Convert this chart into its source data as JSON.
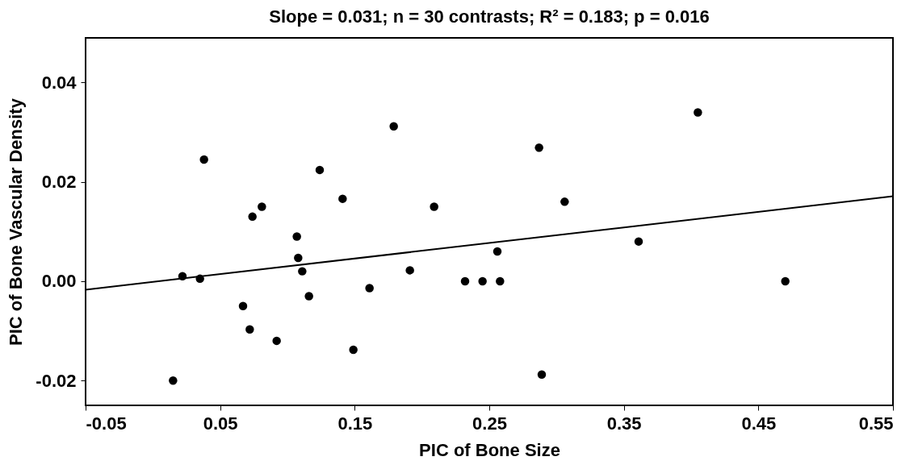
{
  "chart_data": {
    "type": "scatter",
    "title": "Slope = 0.031; n = 30 contrasts; R² = 0.183; p = 0.016",
    "xlabel": "PIC of Bone Size",
    "ylabel": "PIC of Bone Vascular Density",
    "xlim": [
      -0.05,
      0.55
    ],
    "ylim": [
      -0.025,
      0.049
    ],
    "xticks": [
      -0.05,
      0.05,
      0.15,
      0.25,
      0.35,
      0.45,
      0.55
    ],
    "yticks": [
      {
        "value": -0.02,
        "label": "-0.02"
      },
      {
        "value": 0,
        "label": "0.00"
      },
      {
        "value": 0.02,
        "label": "0.02"
      },
      {
        "value": 0.04,
        "label": "0.04"
      }
    ],
    "series": [
      {
        "color": "#000000",
        "marker": "circle",
        "x": [
          0.015,
          0.022,
          0.035,
          0.038,
          0.067,
          0.072,
          0.074,
          0.081,
          0.092,
          0.107,
          0.108,
          0.111,
          0.116,
          0.124,
          0.141,
          0.149,
          0.161,
          0.179,
          0.191,
          0.209,
          0.232,
          0.245,
          0.256,
          0.258,
          0.287,
          0.289,
          0.306,
          0.361,
          0.405,
          0.47
        ],
        "values": [
          -0.02,
          0.001,
          0.0005,
          0.0245,
          -0.005,
          -0.0097,
          0.013,
          0.015,
          -0.012,
          0.009,
          0.0047,
          0.002,
          -0.003,
          0.0224,
          0.0166,
          -0.0138,
          -0.0014,
          0.0312,
          0.0022,
          0.015,
          0,
          0,
          0.006,
          0,
          0.0269,
          -0.0188,
          0.016,
          0.008,
          0.034,
          0
        ]
      },
      {
        "type": "line",
        "color": "#000000",
        "marker": "none",
        "x": [
          -0.05,
          0.55
        ],
        "values": [
          -0.0017,
          0.0171
        ]
      }
    ]
  }
}
